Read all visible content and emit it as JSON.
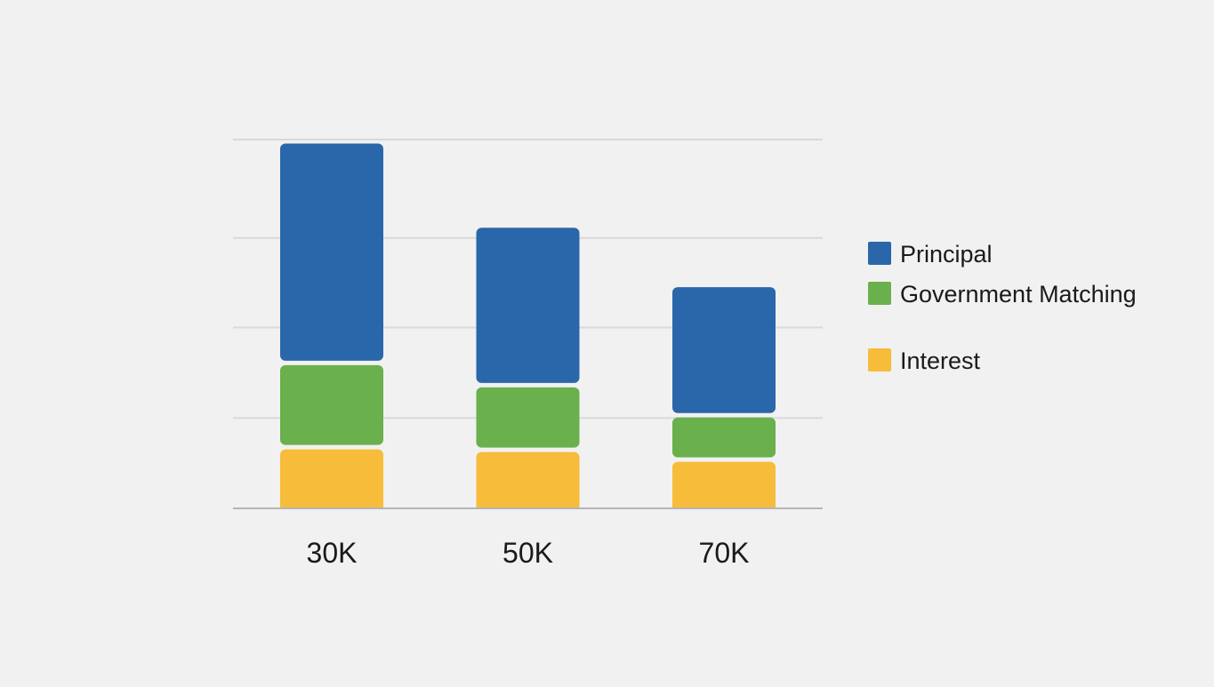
{
  "chart_data": {
    "type": "bar",
    "stacked": true,
    "categories": [
      "30K",
      "50K",
      "70K"
    ],
    "series": [
      {
        "name": "Interest",
        "values": [
          68,
          65,
          54
        ],
        "color": "#f8bc3b"
      },
      {
        "name": "Government Matching",
        "values": [
          95,
          73,
          50
        ],
        "color": "#6ab04c"
      },
      {
        "name": "Principal",
        "values": [
          250,
          180,
          147
        ],
        "color": "#2a67aa"
      }
    ],
    "legend_order": [
      "Principal",
      "Government Matching",
      "Interest"
    ],
    "title": "",
    "xlabel": "",
    "ylabel": "",
    "ylim": [
      0,
      415
    ],
    "grid": true,
    "y_gridlines": [
      101,
      203,
      304,
      415
    ],
    "y_ticks_labeled": false,
    "legend_position": "right"
  }
}
